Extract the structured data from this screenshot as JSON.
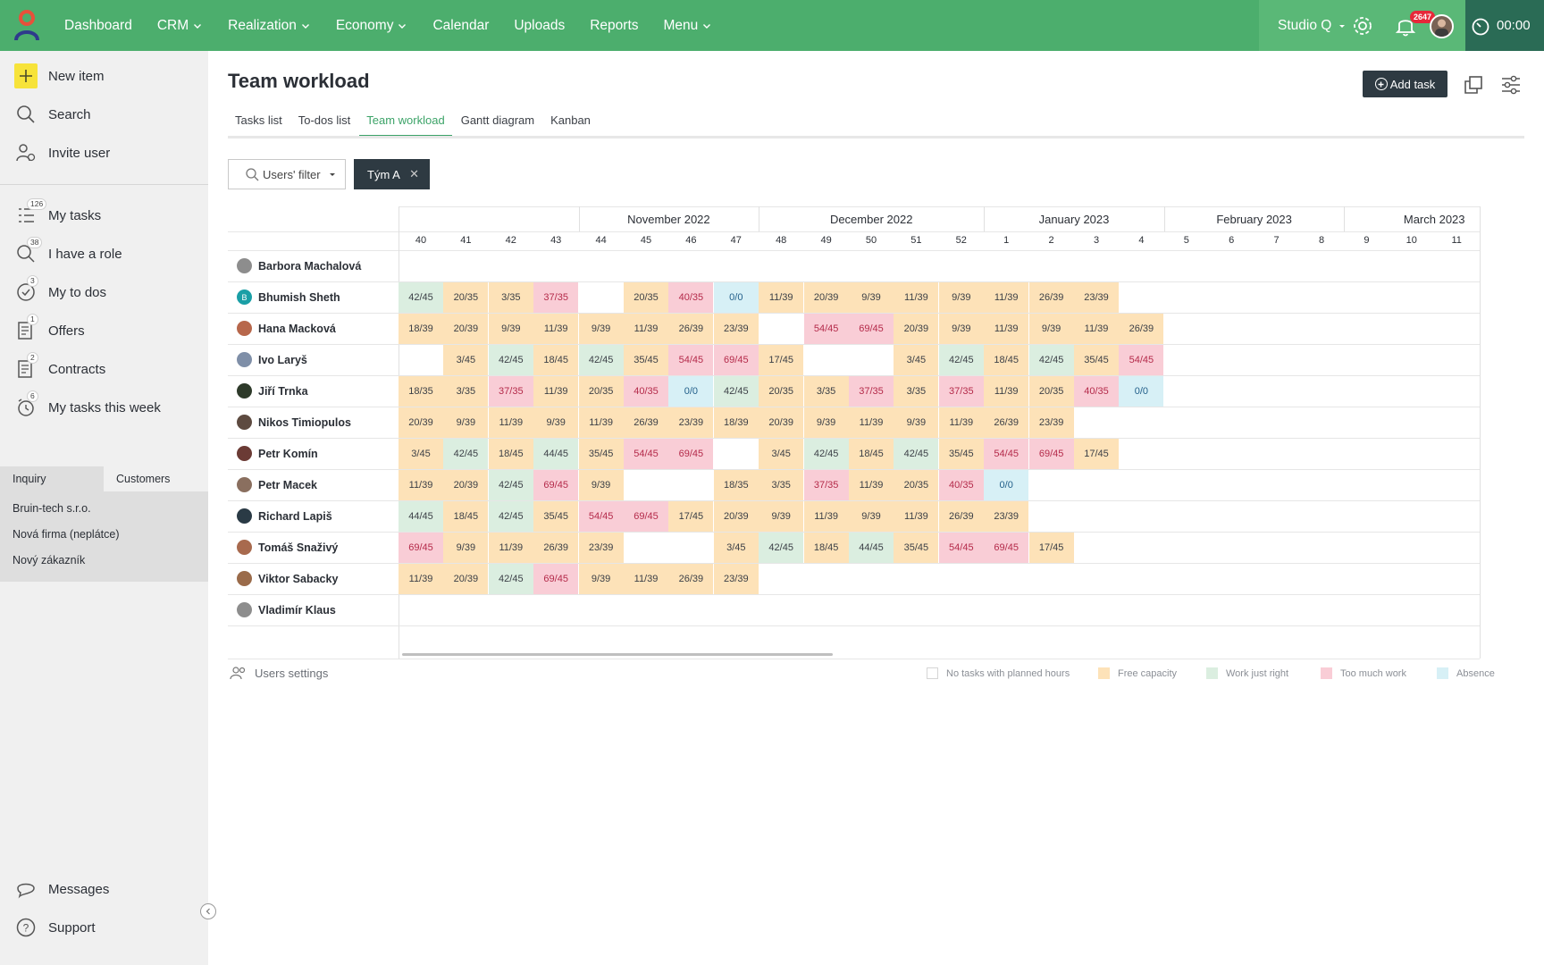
{
  "topbar": {
    "nav": [
      {
        "label": "Dashboard",
        "dropdown": false
      },
      {
        "label": "CRM",
        "dropdown": true
      },
      {
        "label": "Realization",
        "dropdown": true
      },
      {
        "label": "Economy",
        "dropdown": true
      },
      {
        "label": "Calendar",
        "dropdown": false
      },
      {
        "label": "Uploads",
        "dropdown": false
      },
      {
        "label": "Reports",
        "dropdown": false
      },
      {
        "label": "Menu",
        "dropdown": true
      }
    ],
    "studio": "Studio Q",
    "notification_count": "2647",
    "timer": "00:00"
  },
  "sidebar": {
    "top_items": [
      {
        "label": "New item",
        "icon": "plus-icon"
      },
      {
        "label": "Search",
        "icon": "search-icon"
      },
      {
        "label": "Invite user",
        "icon": "invite-user-icon"
      }
    ],
    "items": [
      {
        "label": "My tasks",
        "count": "126",
        "icon": "tasks-list-icon"
      },
      {
        "label": "I have a role",
        "count": "38",
        "icon": "role-search-icon"
      },
      {
        "label": "My to dos",
        "count": "3",
        "icon": "check-circle-icon"
      },
      {
        "label": "Offers",
        "count": "1",
        "icon": "offer-doc-icon"
      },
      {
        "label": "Contracts",
        "count": "2",
        "icon": "contract-doc-icon"
      },
      {
        "label": "My tasks this week",
        "count": "6",
        "icon": "alarm-clock-icon"
      }
    ],
    "tabs": [
      "Inquiry",
      "Customers"
    ],
    "list": [
      "Bruin-tech s.r.o.",
      "Nová firma (neplátce)",
      "Nový zákazník"
    ],
    "bottom": [
      {
        "label": "Messages",
        "icon": "chat-bubble-icon"
      },
      {
        "label": "Support",
        "icon": "help-circle-icon"
      }
    ]
  },
  "main": {
    "title": "Team workload",
    "add_task": "Add task",
    "tabs": [
      "Tasks list",
      "To-dos list",
      "Team workload",
      "Gantt diagram",
      "Kanban"
    ],
    "active_tab": "Team workload",
    "users_filter": "Users' filter",
    "team_chip": "Tým A"
  },
  "workload": {
    "months": [
      {
        "label": "",
        "start": 0,
        "span": 4
      },
      {
        "label": "November 2022",
        "start": 4,
        "span": 4
      },
      {
        "label": "December 2022",
        "start": 8,
        "span": 5
      },
      {
        "label": "January 2023",
        "start": 13,
        "span": 4
      },
      {
        "label": "February 2023",
        "start": 17,
        "span": 4
      },
      {
        "label": "March 2023",
        "start": 21,
        "span": 4
      }
    ],
    "weeks": [
      "40",
      "41",
      "42",
      "43",
      "44",
      "45",
      "46",
      "47",
      "48",
      "49",
      "50",
      "51",
      "52",
      "1",
      "2",
      "3",
      "4",
      "5",
      "6",
      "7",
      "8",
      "9",
      "10",
      "11"
    ],
    "users": [
      {
        "name": "Barbora Machalová",
        "avatar": "#8d8d8d",
        "cells": []
      },
      {
        "name": "Bhumish Sheth",
        "avatar": "#1a9fa6",
        "initial": "B",
        "cells": [
          [
            "42/45",
            "right"
          ],
          [
            "20/35",
            "free"
          ],
          [
            "3/35",
            "free"
          ],
          [
            "37/35",
            "much"
          ],
          [
            "",
            ""
          ],
          [
            "20/35",
            "free"
          ],
          [
            "40/35",
            "much"
          ],
          [
            "0/0",
            "abs"
          ],
          [
            "11/39",
            "free"
          ],
          [
            "20/39",
            "free"
          ],
          [
            "9/39",
            "free"
          ],
          [
            "11/39",
            "free"
          ],
          [
            "9/39",
            "free"
          ],
          [
            "11/39",
            "free"
          ],
          [
            "26/39",
            "free"
          ],
          [
            "23/39",
            "free"
          ]
        ]
      },
      {
        "name": "Hana Macková",
        "avatar": "#b7674b",
        "cells": [
          [
            "18/39",
            "free"
          ],
          [
            "20/39",
            "free"
          ],
          [
            "9/39",
            "free"
          ],
          [
            "11/39",
            "free"
          ],
          [
            "9/39",
            "free"
          ],
          [
            "11/39",
            "free"
          ],
          [
            "26/39",
            "free"
          ],
          [
            "23/39",
            "free"
          ],
          [
            "",
            ""
          ],
          [
            "54/45",
            "much"
          ],
          [
            "69/45",
            "much"
          ],
          [
            "20/39",
            "free"
          ],
          [
            "9/39",
            "free"
          ],
          [
            "11/39",
            "free"
          ],
          [
            "9/39",
            "free"
          ],
          [
            "11/39",
            "free"
          ],
          [
            "26/39",
            "free"
          ]
        ]
      },
      {
        "name": "Ivo Laryš",
        "avatar": "#7f8fa8",
        "cells": [
          [
            "",
            ""
          ],
          [
            "3/45",
            "free"
          ],
          [
            "42/45",
            "right"
          ],
          [
            "18/45",
            "free"
          ],
          [
            "42/45",
            "right"
          ],
          [
            "35/45",
            "free"
          ],
          [
            "54/45",
            "much"
          ],
          [
            "69/45",
            "much"
          ],
          [
            "17/45",
            "free"
          ],
          [
            "",
            ""
          ],
          [
            "",
            ""
          ],
          [
            "3/45",
            "free"
          ],
          [
            "42/45",
            "right"
          ],
          [
            "18/45",
            "free"
          ],
          [
            "42/45",
            "right"
          ],
          [
            "35/45",
            "free"
          ],
          [
            "54/45",
            "much"
          ]
        ]
      },
      {
        "name": "Jiří Trnka",
        "avatar": "#2e3a2a",
        "cells": [
          [
            "18/35",
            "free"
          ],
          [
            "3/35",
            "free"
          ],
          [
            "37/35",
            "much"
          ],
          [
            "11/39",
            "free"
          ],
          [
            "20/35",
            "free"
          ],
          [
            "40/35",
            "much"
          ],
          [
            "0/0",
            "abs"
          ],
          [
            "42/45",
            "right"
          ],
          [
            "20/35",
            "free"
          ],
          [
            "3/35",
            "free"
          ],
          [
            "37/35",
            "much"
          ],
          [
            "3/35",
            "free"
          ],
          [
            "37/35",
            "much"
          ],
          [
            "11/39",
            "free"
          ],
          [
            "20/35",
            "free"
          ],
          [
            "40/35",
            "much"
          ],
          [
            "0/0",
            "abs"
          ]
        ]
      },
      {
        "name": "Nikos Timiopulos",
        "avatar": "#5d4a40",
        "cells": [
          [
            "20/39",
            "free"
          ],
          [
            "9/39",
            "free"
          ],
          [
            "11/39",
            "free"
          ],
          [
            "9/39",
            "free"
          ],
          [
            "11/39",
            "free"
          ],
          [
            "26/39",
            "free"
          ],
          [
            "23/39",
            "free"
          ],
          [
            "18/39",
            "free"
          ],
          [
            "20/39",
            "free"
          ],
          [
            "9/39",
            "free"
          ],
          [
            "11/39",
            "free"
          ],
          [
            "9/39",
            "free"
          ],
          [
            "11/39",
            "free"
          ],
          [
            "26/39",
            "free"
          ],
          [
            "23/39",
            "free"
          ]
        ]
      },
      {
        "name": "Petr Komín",
        "avatar": "#6b3b35",
        "cells": [
          [
            "3/45",
            "free"
          ],
          [
            "42/45",
            "right"
          ],
          [
            "18/45",
            "free"
          ],
          [
            "44/45",
            "right"
          ],
          [
            "35/45",
            "free"
          ],
          [
            "54/45",
            "much"
          ],
          [
            "69/45",
            "much"
          ],
          [
            "",
            ""
          ],
          [
            "3/45",
            "free"
          ],
          [
            "42/45",
            "right"
          ],
          [
            "18/45",
            "free"
          ],
          [
            "42/45",
            "right"
          ],
          [
            "35/45",
            "free"
          ],
          [
            "54/45",
            "much"
          ],
          [
            "69/45",
            "much"
          ],
          [
            "17/45",
            "free"
          ]
        ]
      },
      {
        "name": "Petr Macek",
        "avatar": "#8a6f5f",
        "cells": [
          [
            "11/39",
            "free"
          ],
          [
            "20/39",
            "free"
          ],
          [
            "42/45",
            "right"
          ],
          [
            "69/45",
            "much"
          ],
          [
            "9/39",
            "free"
          ],
          [
            "",
            ""
          ],
          [
            "",
            ""
          ],
          [
            "18/35",
            "free"
          ],
          [
            "3/35",
            "free"
          ],
          [
            "37/35",
            "much"
          ],
          [
            "11/39",
            "free"
          ],
          [
            "20/35",
            "free"
          ],
          [
            "40/35",
            "much"
          ],
          [
            "0/0",
            "abs"
          ]
        ]
      },
      {
        "name": "Richard Lapiš",
        "avatar": "#2a3a45",
        "cells": [
          [
            "44/45",
            "right"
          ],
          [
            "18/45",
            "free"
          ],
          [
            "42/45",
            "right"
          ],
          [
            "35/45",
            "free"
          ],
          [
            "54/45",
            "much"
          ],
          [
            "69/45",
            "much"
          ],
          [
            "17/45",
            "free"
          ],
          [
            "20/39",
            "free"
          ],
          [
            "9/39",
            "free"
          ],
          [
            "11/39",
            "free"
          ],
          [
            "9/39",
            "free"
          ],
          [
            "11/39",
            "free"
          ],
          [
            "26/39",
            "free"
          ],
          [
            "23/39",
            "free"
          ]
        ]
      },
      {
        "name": "Tomáš Snaživý",
        "avatar": "#a86a4e",
        "cells": [
          [
            "69/45",
            "much"
          ],
          [
            "9/39",
            "free"
          ],
          [
            "11/39",
            "free"
          ],
          [
            "26/39",
            "free"
          ],
          [
            "23/39",
            "free"
          ],
          [
            "",
            ""
          ],
          [
            "",
            ""
          ],
          [
            "3/45",
            "free"
          ],
          [
            "42/45",
            "right"
          ],
          [
            "18/45",
            "free"
          ],
          [
            "44/45",
            "right"
          ],
          [
            "35/45",
            "free"
          ],
          [
            "54/45",
            "much"
          ],
          [
            "69/45",
            "much"
          ],
          [
            "17/45",
            "free"
          ]
        ]
      },
      {
        "name": "Viktor Sabacky",
        "avatar": "#9a6b4a",
        "cells": [
          [
            "11/39",
            "free"
          ],
          [
            "20/39",
            "free"
          ],
          [
            "42/45",
            "right"
          ],
          [
            "69/45",
            "much"
          ],
          [
            "9/39",
            "free"
          ],
          [
            "11/39",
            "free"
          ],
          [
            "26/39",
            "free"
          ],
          [
            "23/39",
            "free"
          ]
        ]
      },
      {
        "name": "Vladimír Klaus",
        "avatar": "#8d8d8d",
        "cells": []
      }
    ]
  },
  "footer": {
    "users_settings": "Users settings",
    "legend": [
      {
        "label": "No tasks with planned hours",
        "color": "#ffffff"
      },
      {
        "label": "Free capacity",
        "color": "#fde2b8"
      },
      {
        "label": "Work just right",
        "color": "#dbeee0"
      },
      {
        "label": "Too much work",
        "color": "#f9cdd6"
      },
      {
        "label": "Absence",
        "color": "#d7f0f6"
      }
    ]
  },
  "colors": {
    "brand": "#4cae6d",
    "dark": "#2e3a42",
    "accent": "#3ca368"
  }
}
